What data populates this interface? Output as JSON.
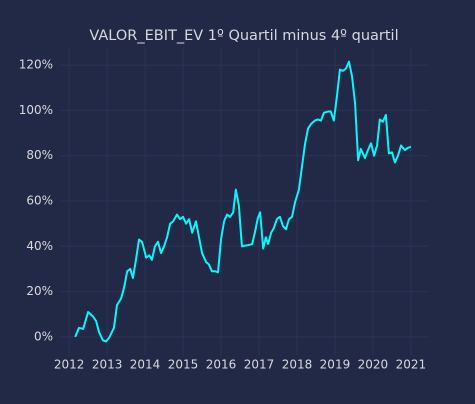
{
  "chart_data": {
    "type": "line",
    "title": "VALOR_EBIT_EV 1º Quartil minus 4º quartil",
    "x": [
      2012.16,
      2012.26,
      2012.37,
      2012.5,
      2012.63,
      2012.71,
      2012.79,
      2012.89,
      2012.97,
      2013.05,
      2013.18,
      2013.26,
      2013.37,
      2013.45,
      2013.53,
      2013.61,
      2013.68,
      2013.76,
      2013.84,
      2013.92,
      2014.03,
      2014.11,
      2014.18,
      2014.26,
      2014.34,
      2014.42,
      2014.5,
      2014.58,
      2014.66,
      2014.74,
      2014.84,
      2014.92,
      2015.0,
      2015.08,
      2015.16,
      2015.24,
      2015.34,
      2015.42,
      2015.5,
      2015.61,
      2015.68,
      2015.76,
      2015.84,
      2015.92,
      2016.0,
      2016.08,
      2016.16,
      2016.24,
      2016.32,
      2016.39,
      2016.47,
      2016.55,
      2016.71,
      2016.82,
      2016.89,
      2016.97,
      2017.03,
      2017.11,
      2017.18,
      2017.24,
      2017.32,
      2017.39,
      2017.47,
      2017.55,
      2017.63,
      2017.71,
      2017.79,
      2017.87,
      2017.95,
      2018.05,
      2018.13,
      2018.21,
      2018.29,
      2018.37,
      2018.47,
      2018.55,
      2018.63,
      2018.71,
      2018.82,
      2018.89,
      2018.97,
      2019.05,
      2019.13,
      2019.21,
      2019.29,
      2019.37,
      2019.45,
      2019.53,
      2019.61,
      2019.68,
      2019.79,
      2019.87,
      2019.95,
      2020.03,
      2020.11,
      2020.18,
      2020.26,
      2020.34,
      2020.42,
      2020.5,
      2020.58,
      2020.66,
      2020.74,
      2020.84,
      2020.92,
      2021.0
    ],
    "values": [
      0,
      4,
      3.5,
      11,
      9,
      7,
      2,
      -1.5,
      -2,
      -0.5,
      4,
      14,
      17,
      22,
      29,
      30,
      26,
      34,
      43,
      42,
      35,
      36,
      34,
      40,
      42,
      37,
      40,
      44,
      50,
      51,
      54,
      52,
      53,
      50,
      52,
      46,
      51,
      44,
      37,
      33,
      32,
      29,
      29,
      28.5,
      43,
      51,
      54,
      53,
      55,
      65,
      58,
      40,
      40.5,
      41,
      46,
      52.5,
      55,
      39,
      44,
      41,
      46,
      48,
      52,
      53,
      49,
      47.5,
      52,
      53,
      59.5,
      65,
      75,
      85,
      92,
      94,
      95.5,
      96,
      95.5,
      99,
      99.5,
      99.5,
      95.5,
      106,
      118,
      117.5,
      118.5,
      121.5,
      115,
      103,
      78,
      83,
      79,
      82.5,
      85.5,
      80,
      84.5,
      96,
      95,
      98,
      81,
      81.5,
      77,
      80,
      84.5,
      82.5,
      83.5,
      84
    ],
    "color": "#08f7fe",
    "xlim": [
      2011.76,
      2021.45
    ],
    "xticks": [
      2012,
      2013,
      2014,
      2015,
      2016,
      2017,
      2018,
      2019,
      2020,
      2021
    ],
    "ylim": [
      -8,
      128
    ],
    "yticks": [
      {
        "value": 0,
        "label": "0%"
      },
      {
        "value": 20,
        "label": "20%"
      },
      {
        "value": 40,
        "label": "40%"
      },
      {
        "value": 60,
        "label": "60%"
      },
      {
        "value": 80,
        "label": "80%"
      },
      {
        "value": 100,
        "label": "100%"
      },
      {
        "value": 120,
        "label": "120%"
      }
    ],
    "grid": true
  }
}
